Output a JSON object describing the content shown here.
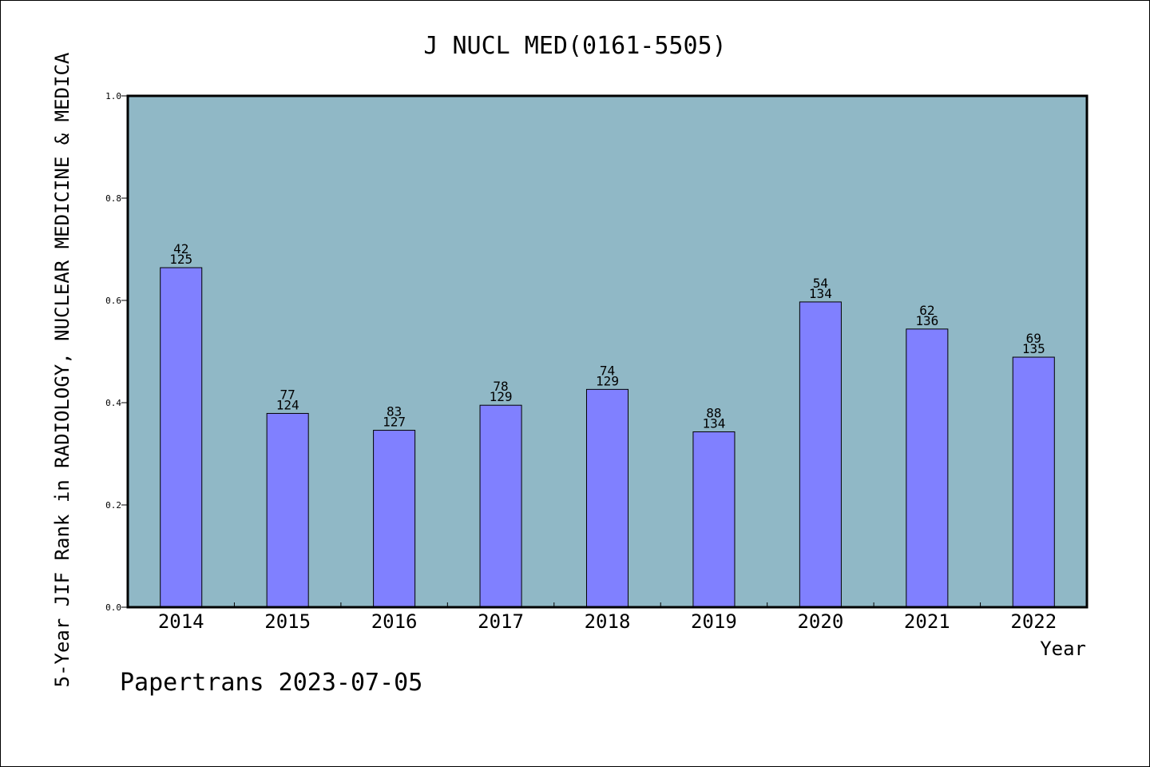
{
  "chart_data": {
    "type": "bar",
    "title": "J NUCL MED(0161-5505)",
    "ylabel": "5-Year JIF Rank in RADIOLOGY, NUCLEAR MEDICINE & MEDICA",
    "xlabel": "Year",
    "ylim": [
      0.0,
      1.0
    ],
    "yticks": [
      "0.0",
      "0.2",
      "0.4",
      "0.6",
      "0.8",
      "1.0"
    ],
    "grid": false,
    "categories": [
      "2014",
      "2015",
      "2016",
      "2017",
      "2018",
      "2019",
      "2020",
      "2021",
      "2022"
    ],
    "values": [
      0.664,
      0.379,
      0.346,
      0.395,
      0.426,
      0.343,
      0.597,
      0.544,
      0.489
    ],
    "rank": [
      "42",
      "77",
      "83",
      "78",
      "74",
      "88",
      "54",
      "62",
      "69"
    ],
    "total": [
      "125",
      "124",
      "127",
      "129",
      "129",
      "134",
      "134",
      "136",
      "135"
    ],
    "colors": {
      "plot_background": "#90b8c6",
      "bar_fill": "#8080ff",
      "bar_stroke": "#000000"
    }
  },
  "footer": {
    "credit": "Papertrans 2023-07-05"
  }
}
